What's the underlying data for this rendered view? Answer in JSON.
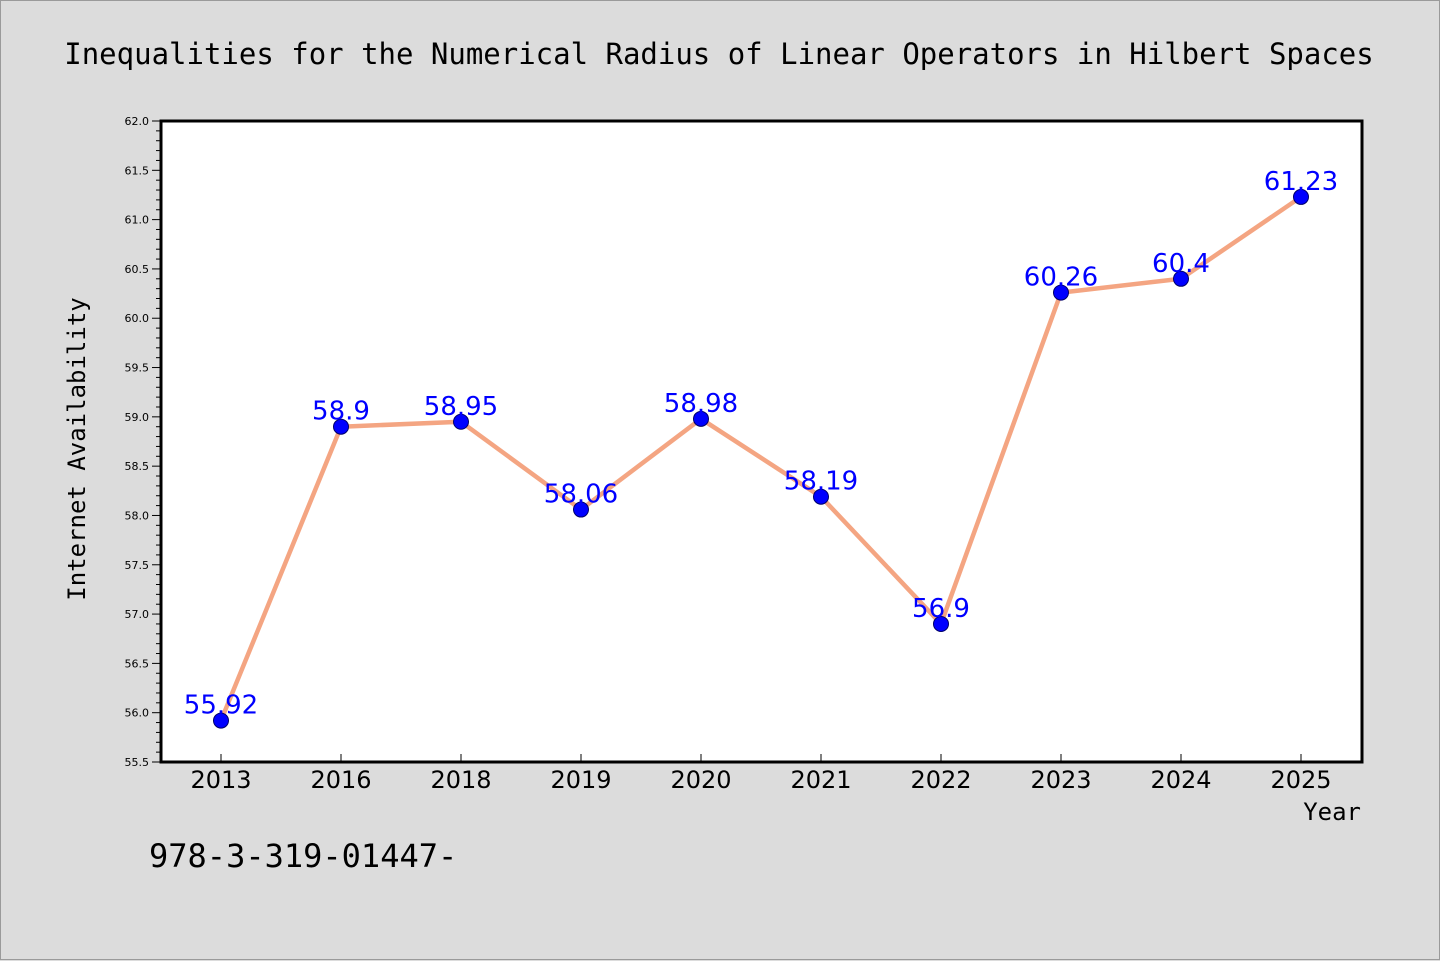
{
  "chart_data": {
    "type": "line",
    "title": "Inequalities for the Numerical Radius of Linear Operators in Hilbert Spaces",
    "xlabel": "Year",
    "ylabel": "Internet Availability",
    "categories": [
      "2013",
      "2016",
      "2018",
      "2019",
      "2020",
      "2021",
      "2022",
      "2023",
      "2024",
      "2025"
    ],
    "values": [
      55.92,
      58.9,
      58.95,
      58.06,
      58.98,
      58.19,
      56.9,
      60.26,
      60.4,
      61.23
    ],
    "data_labels": [
      "55.92",
      "58.9",
      "58.95",
      "58.06",
      "58.98",
      "58.19",
      "56.9",
      "60.26",
      "60.4",
      "61.23"
    ],
    "ylim": [
      55.5,
      62.0
    ],
    "yticks": [
      "55.5",
      "56.0",
      "56.5",
      "57.0",
      "57.5",
      "58.0",
      "58.5",
      "59.0",
      "59.5",
      "60.0",
      "60.5",
      "61.0",
      "61.5",
      "62.0"
    ],
    "grid": false,
    "legend": "none",
    "line_color": "#f4a582",
    "marker_color": "#0000ff",
    "label_color": "#0000ff"
  },
  "footer": {
    "text": "978-3-319-01447-"
  }
}
